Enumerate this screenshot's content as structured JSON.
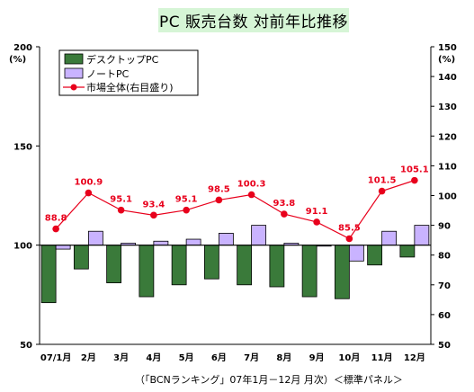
{
  "chart_data": {
    "type": "bar+line",
    "title": "PC 販売台数 対前年比推移",
    "categories": [
      "07/1月",
      "2月",
      "3月",
      "4月",
      "5月",
      "6月",
      "7月",
      "8月",
      "9月",
      "10月",
      "11月",
      "12月"
    ],
    "series": [
      {
        "name": "デスクトップPC",
        "type": "bar",
        "axis": "left",
        "color": "#3a7a3a",
        "values": [
          71,
          88,
          81,
          74,
          80,
          83,
          80,
          79,
          74,
          73,
          90,
          94
        ]
      },
      {
        "name": "ノートPC",
        "type": "bar",
        "axis": "left",
        "color": "#c9b3ff",
        "values": [
          98,
          107,
          101,
          102,
          103,
          106,
          110,
          101,
          99.5,
          92,
          107,
          110
        ]
      },
      {
        "name": "市場全体(右目盛り)",
        "type": "line",
        "axis": "right",
        "color": "#e8001c",
        "values": [
          88.8,
          100.9,
          95.1,
          93.4,
          95.1,
          98.5,
          100.3,
          93.8,
          91.1,
          85.5,
          101.5,
          105.1
        ],
        "labels": [
          "88.8",
          "100.9",
          "95.1",
          "93.4",
          "95.1",
          "98.5",
          "100.3",
          "93.8",
          "91.1",
          "85.5",
          "101.5",
          "105.1"
        ]
      }
    ],
    "y_left": {
      "unit": "(%)",
      "range": [
        50,
        200
      ],
      "baseline": 100,
      "ticks": [
        "200",
        "150",
        "100",
        "50"
      ]
    },
    "y_right": {
      "unit": "(%)",
      "range": [
        50,
        150
      ],
      "ticks": [
        "150",
        "140",
        "130",
        "120",
        "110",
        "100",
        "90",
        "80",
        "70",
        "60",
        "50"
      ]
    },
    "legend": {
      "position": "top-left"
    },
    "grid": false
  },
  "source": "（「BCNランキング」07年1月－12月 月次）＜標準パネル＞"
}
